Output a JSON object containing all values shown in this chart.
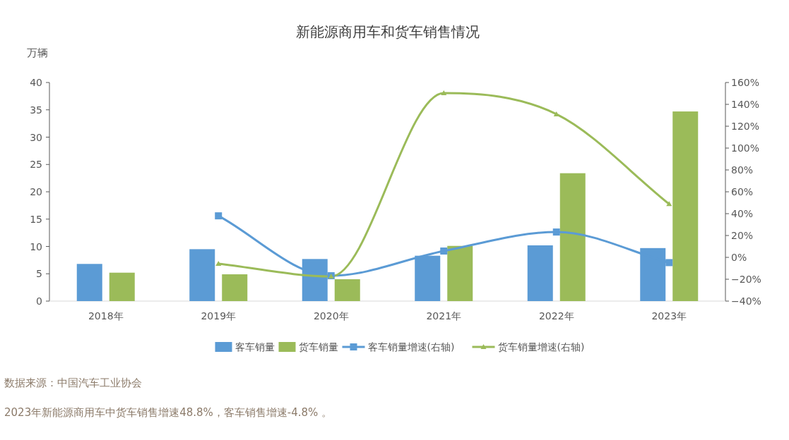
{
  "chart_data": {
    "type": "bar",
    "title": "新能源商用车和货车销售情况",
    "ylabel": "万辆",
    "categories": [
      "2018年",
      "2019年",
      "2020年",
      "2021年",
      "2022年",
      "2023年"
    ],
    "ylim": [
      0,
      40
    ],
    "yticks": [
      0,
      5,
      10,
      15,
      20,
      25,
      30,
      35,
      40
    ],
    "y2lim": [
      -40,
      160
    ],
    "y2ticks": [
      {
        "value": -40,
        "label": "−40%"
      },
      {
        "value": -20,
        "label": "−20%"
      },
      {
        "value": 0,
        "label": "0%"
      },
      {
        "value": 20,
        "label": "20%"
      },
      {
        "value": 40,
        "label": "40%"
      },
      {
        "value": 60,
        "label": "60%"
      },
      {
        "value": 80,
        "label": "80%"
      },
      {
        "value": 100,
        "label": "100%"
      },
      {
        "value": 120,
        "label": "120%"
      },
      {
        "value": 140,
        "label": "140%"
      },
      {
        "value": 160,
        "label": "160%"
      }
    ],
    "legend": "bottom",
    "series": [
      {
        "name": "客车销量",
        "color": "#5b9bd5",
        "values": [
          6.8,
          9.5,
          7.7,
          8.3,
          10.2,
          9.7
        ]
      },
      {
        "name": "货车销量",
        "color": "#9bbb59",
        "values": [
          5.2,
          4.9,
          4.0,
          10.1,
          23.4,
          34.7
        ]
      },
      {
        "name": "客车销量增速(右轴)",
        "type": "line",
        "axis": "y2",
        "marker": "square",
        "color": "#5b9bd5",
        "values": [
          null,
          38,
          -16.8,
          5.8,
          23.2,
          -4.8
        ]
      },
      {
        "name": "货车销量增速(右轴)",
        "type": "line",
        "axis": "y2",
        "marker": "triangle",
        "color": "#9bbb59",
        "values": [
          null,
          -5.8,
          -17.4,
          150.3,
          131,
          48.8
        ]
      }
    ],
    "annotations": [
      "数据来源：中国汽车工业协会",
      "2023年新能源商用车中货车销售增速48.8%，客车销售增速-4.8% 。"
    ]
  }
}
